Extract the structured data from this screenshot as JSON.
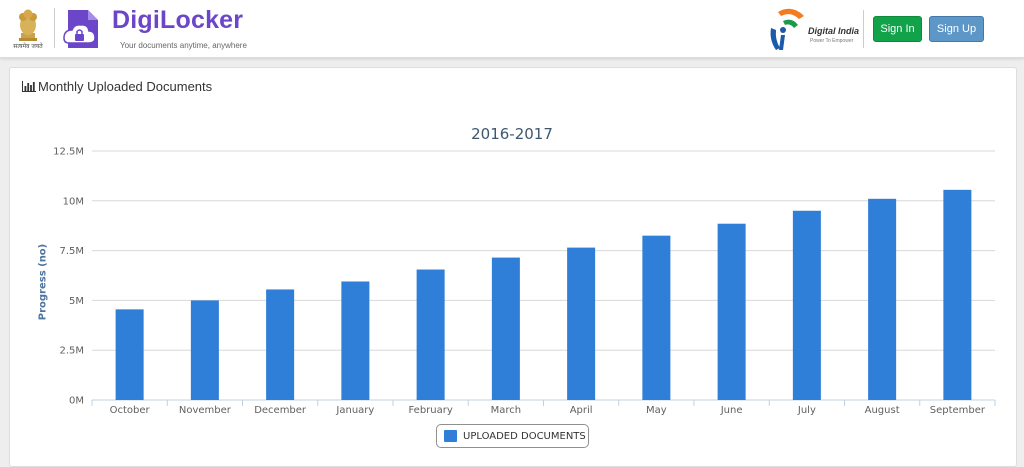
{
  "header": {
    "emblem_caption": "सत्यमेव जयते",
    "brand_name": "DigiLocker",
    "brand_tagline": "Your documents anytime, anywhere",
    "di_name": "Digital India",
    "di_tagline": "Power To Empower",
    "signin_label": "Sign In",
    "signup_label": "Sign Up",
    "signin_color": "#12a24a",
    "signup_color": "#5d97c8"
  },
  "card": {
    "title": "Monthly Uploaded Documents",
    "title_icon": "bar-chart-icon"
  },
  "chart_data": {
    "type": "bar",
    "title": "2016-2017",
    "xlabel": "",
    "ylabel": "Progress (no)",
    "categories": [
      "October",
      "November",
      "December",
      "January",
      "February",
      "March",
      "April",
      "May",
      "June",
      "July",
      "August",
      "September"
    ],
    "series": [
      {
        "name": "UPLOADED DOCUMENTS",
        "color": "#2f7ed8",
        "values": [
          4550000,
          5000000,
          5550000,
          5950000,
          6550000,
          7150000,
          7650000,
          8250000,
          8850000,
          9500000,
          10100000,
          10550000
        ]
      }
    ],
    "ylim": [
      0,
      12500000
    ],
    "yticks": [
      0,
      2500000,
      5000000,
      7500000,
      10000000,
      12500000
    ],
    "ytick_labels": [
      "0M",
      "2.5M",
      "5M",
      "7.5M",
      "10M",
      "12.5M"
    ],
    "grid": true,
    "legend_placement": "bottom-center"
  }
}
